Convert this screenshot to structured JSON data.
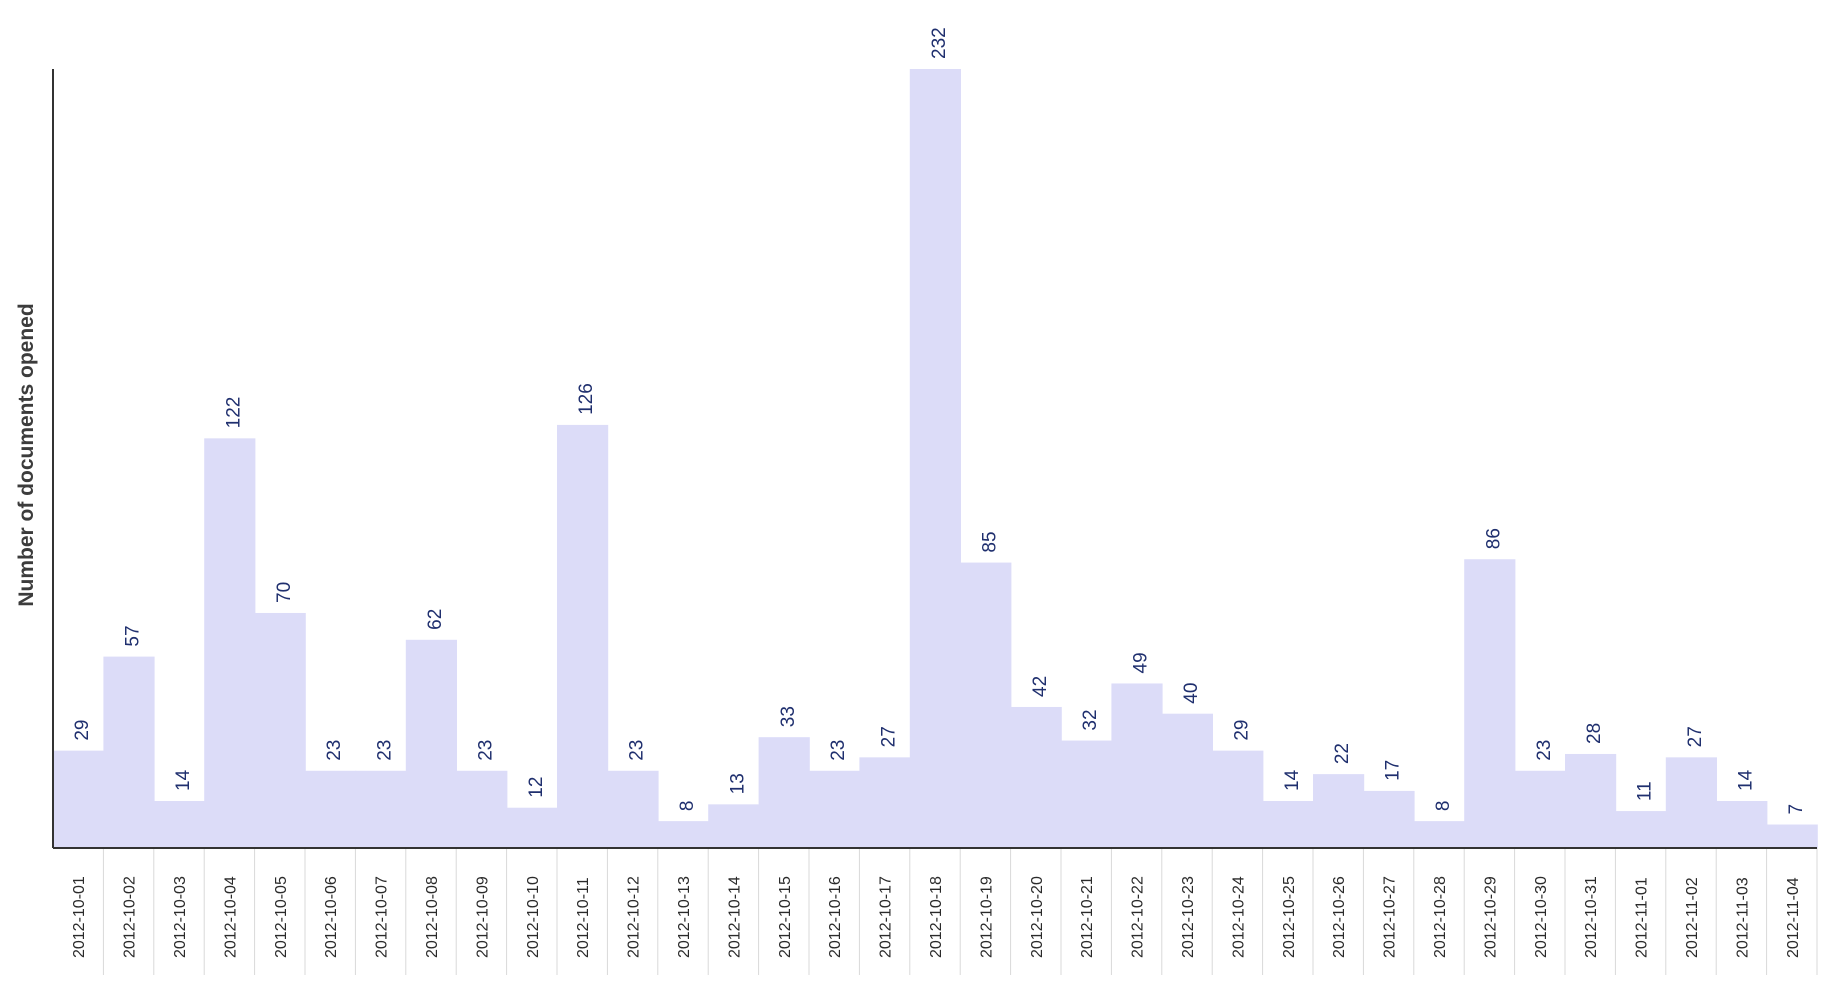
{
  "chart_data": {
    "type": "bar",
    "title": "",
    "xlabel": "",
    "ylabel": "Number of documents opened",
    "categories": [
      "2012-10-01",
      "2012-10-02",
      "2012-10-03",
      "2012-10-04",
      "2012-10-05",
      "2012-10-06",
      "2012-10-07",
      "2012-10-08",
      "2012-10-09",
      "2012-10-10",
      "2012-10-11",
      "2012-10-12",
      "2012-10-13",
      "2012-10-14",
      "2012-10-15",
      "2012-10-16",
      "2012-10-17",
      "2012-10-18",
      "2012-10-19",
      "2012-10-20",
      "2012-10-21",
      "2012-10-22",
      "2012-10-23",
      "2012-10-24",
      "2012-10-25",
      "2012-10-26",
      "2012-10-27",
      "2012-10-28",
      "2012-10-29",
      "2012-10-30",
      "2012-10-31",
      "2012-11-01",
      "2012-11-02",
      "2012-11-03",
      "2012-11-04"
    ],
    "values": [
      29,
      57,
      14,
      122,
      70,
      23,
      23,
      62,
      23,
      12,
      126,
      23,
      8,
      13,
      33,
      23,
      27,
      232,
      85,
      42,
      32,
      49,
      40,
      29,
      14,
      22,
      17,
      8,
      86,
      23,
      28,
      11,
      27,
      14,
      7
    ],
    "ylim": [
      0,
      232
    ],
    "grid": false,
    "legend": "none",
    "colors": {
      "bar": "#dcdcf8",
      "value_label": "#1f2f6e",
      "tick_label": "#2a2a2a",
      "ylabel": "#3c3c3c",
      "axis": "#333333",
      "tick_separator": "#d9d9d9"
    }
  }
}
